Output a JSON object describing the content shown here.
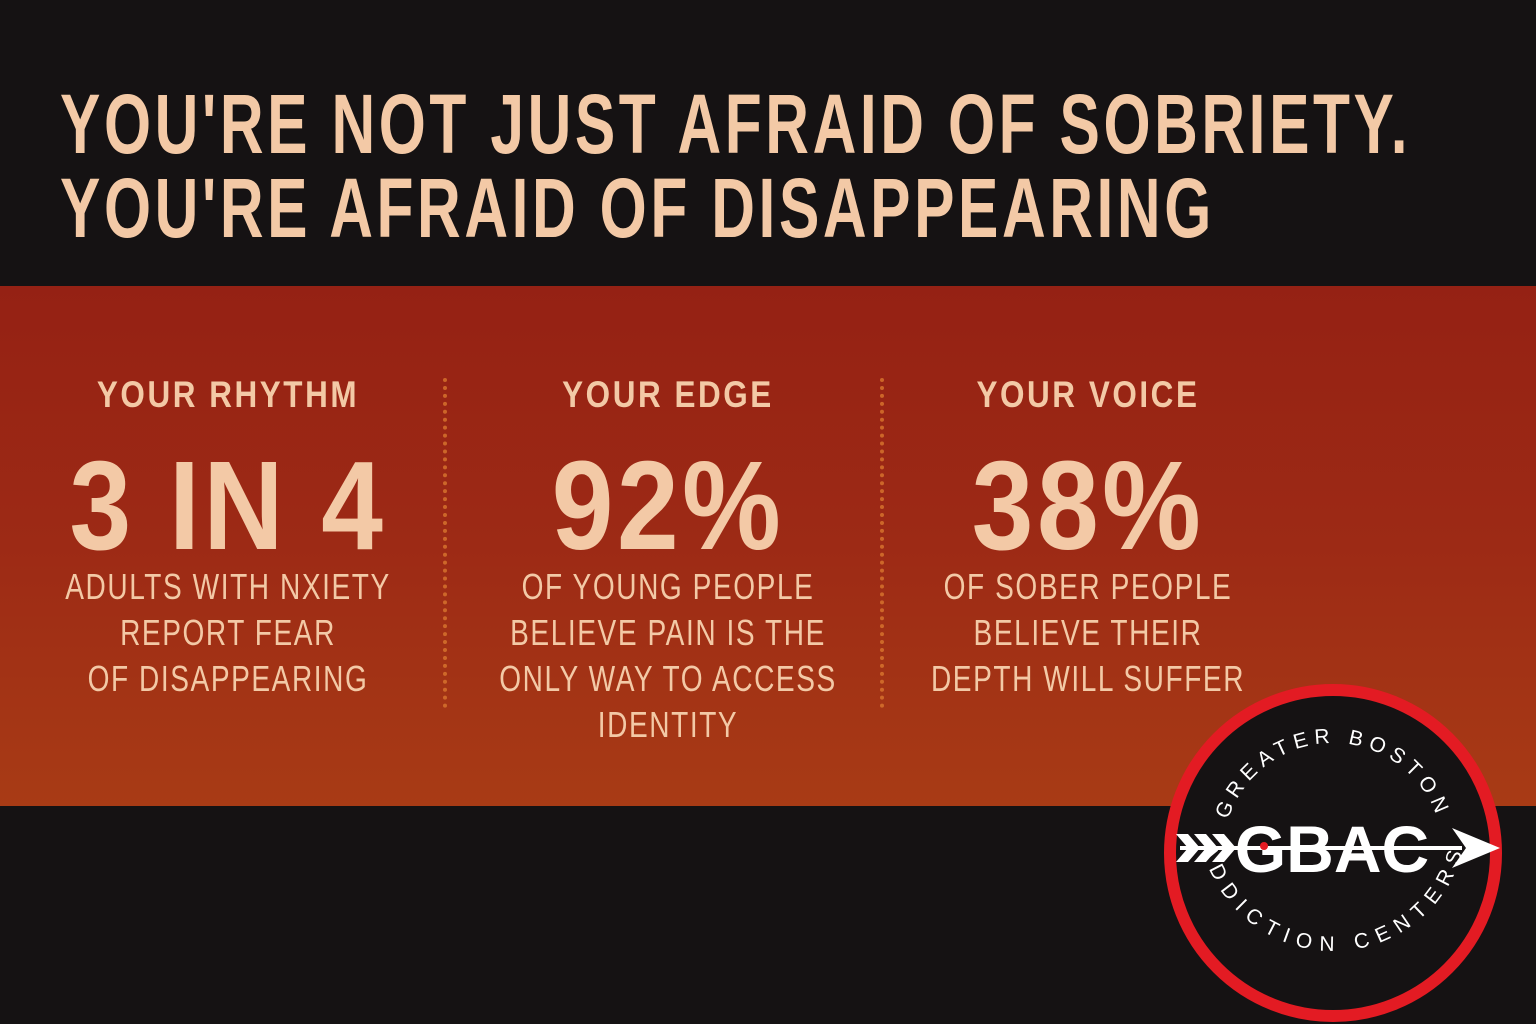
{
  "title": {
    "line1": "YOU'RE NOT JUST AFRAID OF SOBRIETY.",
    "line2": "YOU'RE AFRAID OF DISAPPEARING"
  },
  "stats": [
    {
      "heading": "YOUR RHYTHM",
      "value": "3 IN 4",
      "description_lines": [
        "ADULTS WITH NXIETY",
        "REPORT FEAR",
        "OF DISAPPEARING"
      ]
    },
    {
      "heading": "YOUR EDGE",
      "value": "92%",
      "description_lines": [
        "OF YOUNG PEOPLE",
        "BELIEVE PAIN IS THE",
        "ONLY WAY TO ACCESS",
        "IDENTITY"
      ]
    },
    {
      "heading": "YOUR VOICE",
      "value": "38%",
      "description_lines": [
        "OF SOBER PEOPLE",
        "BELIEVE THEIR",
        "DEPTH WILL SUFFER"
      ]
    }
  ],
  "logo": {
    "mark": "GBAC",
    "top_arc": "GREATER BOSTON",
    "bottom_arc": "ADDICTION CENTERS",
    "icon": "arrow-icon"
  },
  "colors": {
    "background": "#151213",
    "band": "#9d2a15",
    "text": "#f3c9a6",
    "divider": "#d9762e",
    "logo_ring": "#e31b23"
  }
}
